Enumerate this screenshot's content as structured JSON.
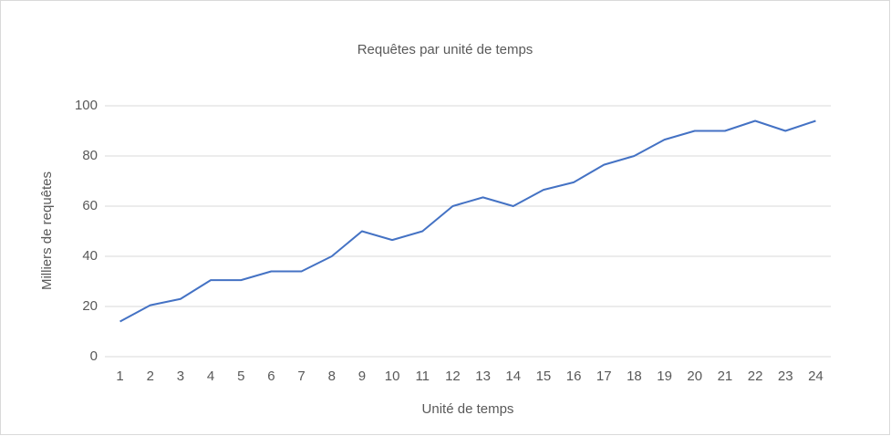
{
  "chart_data": {
    "type": "line",
    "title": "Requêtes par unité de temps",
    "x_label": "Unité de temps",
    "y_label": "Milliers de requêtes",
    "categories": [
      "1",
      "2",
      "3",
      "4",
      "5",
      "6",
      "7",
      "8",
      "9",
      "10",
      "11",
      "12",
      "13",
      "14",
      "15",
      "16",
      "17",
      "18",
      "19",
      "20",
      "21",
      "22",
      "23",
      "24"
    ],
    "series": [
      {
        "name": "Requêtes",
        "color": "#4472c4",
        "values": [
          14,
          20.5,
          23,
          30.5,
          30.5,
          34,
          34,
          40,
          50,
          46.5,
          50,
          60,
          63.5,
          60,
          66.5,
          69.5,
          76.5,
          80,
          86.5,
          90,
          90,
          94,
          90,
          94
        ]
      }
    ],
    "ylim": [
      0,
      100
    ],
    "yticks": [
      0,
      20,
      40,
      60,
      80,
      100
    ],
    "grid": true
  }
}
